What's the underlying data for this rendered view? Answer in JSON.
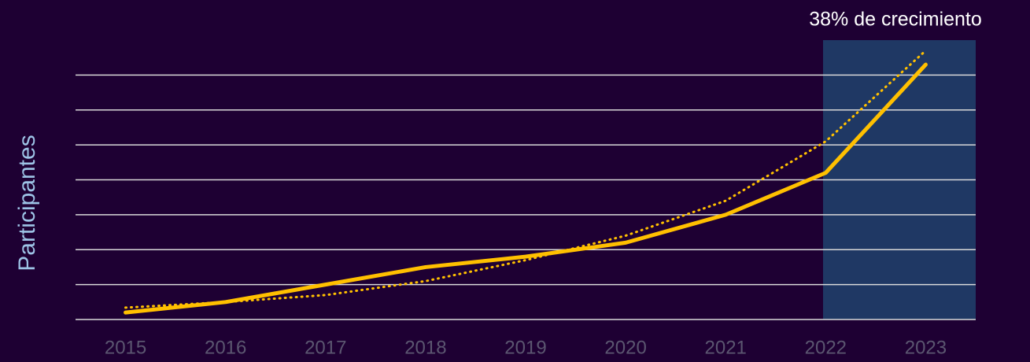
{
  "chart_data": {
    "type": "line",
    "annotation": "38% de crecimiento",
    "y_label": "Participantes",
    "categories": [
      "2015",
      "2016",
      "2017",
      "2018",
      "2019",
      "2020",
      "2021",
      "2022",
      "2023"
    ],
    "series": [
      {
        "color": "#ffc000",
        "style": "solid",
        "values": [
          0.2,
          0.5,
          1.0,
          1.5,
          1.8,
          2.2,
          3.0,
          4.2,
          7.3
        ]
      },
      {
        "color": "#ffc000",
        "style": "dotted",
        "values": [
          0.34,
          0.5,
          0.7,
          1.1,
          1.7,
          2.4,
          3.4,
          5.1,
          7.7
        ]
      }
    ],
    "ylim": [
      0,
      8
    ],
    "yticks": [
      0,
      1,
      2,
      3,
      4,
      5,
      6,
      7
    ],
    "grid": true
  }
}
